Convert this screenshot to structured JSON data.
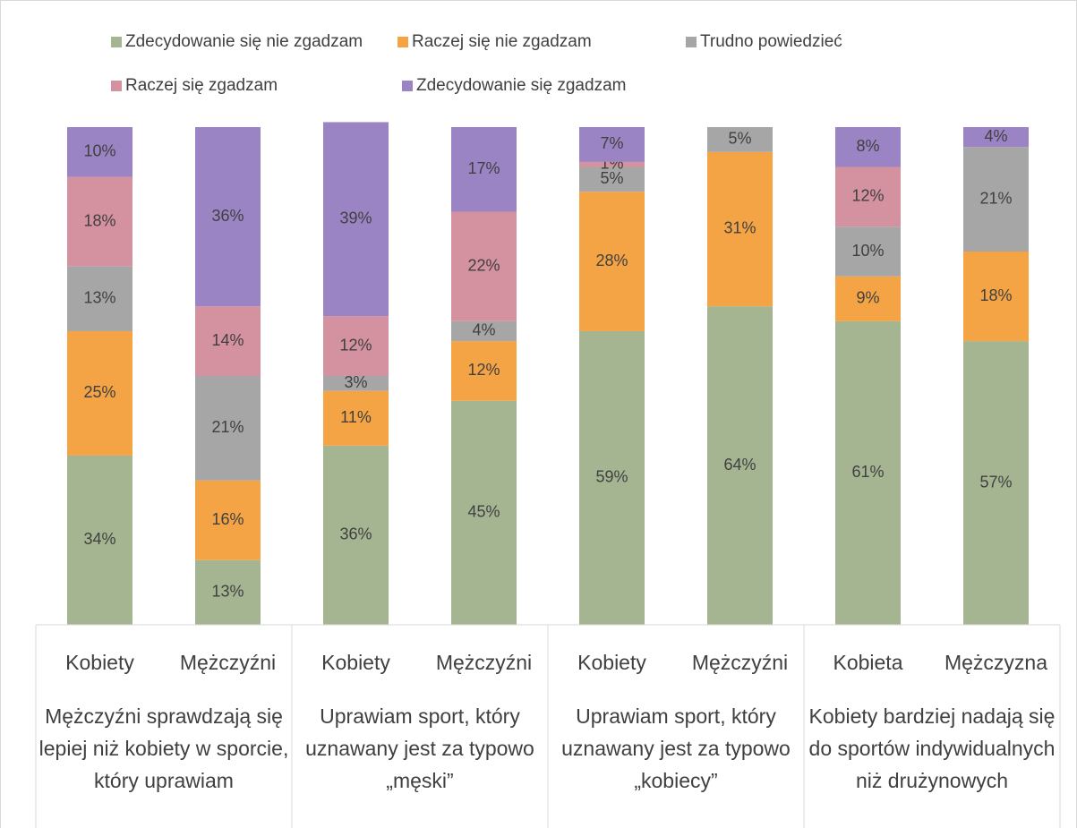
{
  "chart_data": {
    "type": "stacked_bar",
    "categories": [
      "Kobiety",
      "Mężczyźni",
      "Kobiety",
      "Mężczyźni",
      "Kobiety",
      "Mężczyźni",
      "Kobieta",
      "Mężczyzna"
    ],
    "groups": [
      "Mężczyźni sprawdzają się lepiej niż kobiety w sporcie, który uprawiam",
      "Uprawiam sport, który uznawany jest za typowo „męski”",
      "Uprawiam sport, który uznawany jest za typowo „kobiecy”",
      "Kobiety bardziej nadają się do sportów indywidualnych niż drużynowych"
    ],
    "ylim": [
      0,
      100
    ],
    "series": [
      {
        "name": "Zdecydowanie się nie zgadzam",
        "color": "#a5b592",
        "values": [
          34,
          13,
          36,
          45,
          59,
          64,
          61,
          57
        ],
        "value_labels": [
          "34%",
          "13%",
          "36%",
          "45%",
          "59%",
          "64%",
          "61%",
          "57%"
        ]
      },
      {
        "name": "Raczej się nie zgadzam",
        "color": "#f4a445",
        "values": [
          25,
          16,
          11,
          12,
          28,
          31,
          9,
          18
        ],
        "value_labels": [
          "25%",
          "16%",
          "11%",
          "12%",
          "28%",
          "31%",
          "9%",
          "18%"
        ]
      },
      {
        "name": "Trudno powiedzieć",
        "color": "#a6a6a6",
        "values": [
          13,
          21,
          3,
          4,
          5,
          5,
          10,
          21
        ],
        "value_labels": [
          "13%",
          "21%",
          "3%",
          "4%",
          "5%",
          "5%",
          "10%",
          "21%"
        ]
      },
      {
        "name": "Raczej się zgadzam",
        "color": "#d4919f",
        "values": [
          18,
          14,
          12,
          22,
          1,
          null,
          12,
          null
        ],
        "value_labels": [
          "18%",
          "14%",
          "12%",
          "22%",
          "1%",
          null,
          "12%",
          null
        ]
      },
      {
        "name": "Zdecydowanie się zgadzam",
        "color": "#9b84c3",
        "values": [
          10,
          36,
          39,
          17,
          7,
          null,
          8,
          4
        ],
        "value_labels": [
          "10%",
          "36%",
          "39%",
          "17%",
          "7%",
          null,
          "8%",
          "4%"
        ]
      }
    ]
  }
}
